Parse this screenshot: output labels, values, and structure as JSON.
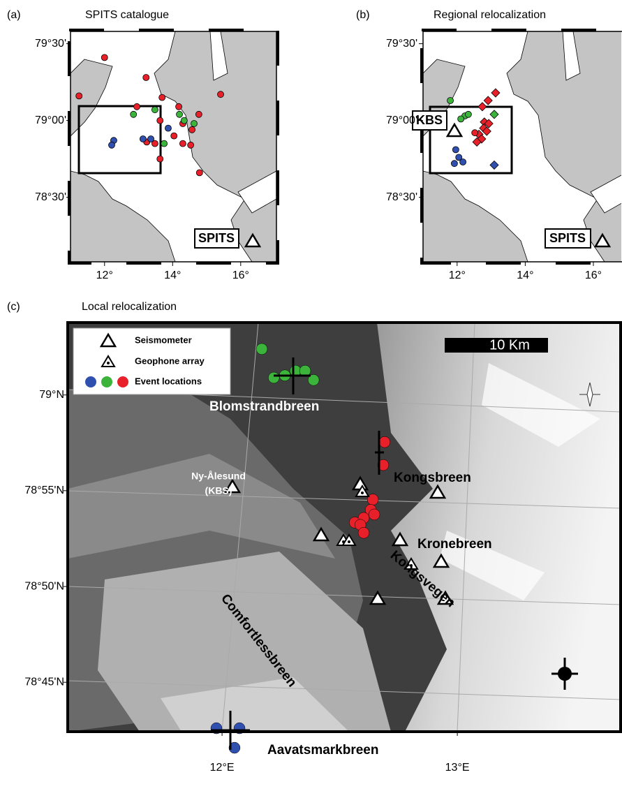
{
  "panels": [
    {
      "label": "(a)",
      "title": "SPITS catalogue",
      "station": "SPITS",
      "xlim": [
        11,
        17.05
      ],
      "ylim": [
        78.08,
        79.58
      ],
      "xticks": [
        {
          "value": 12,
          "label": "12°"
        },
        {
          "value": 14,
          "label": "14°"
        },
        {
          "value": 16,
          "label": "16°"
        }
      ],
      "yticks": [
        {
          "value": 79.5,
          "label": "79°30'"
        },
        {
          "value": 79,
          "label": "79°00'"
        },
        {
          "value": 78.5,
          "label": "78°30'"
        }
      ],
      "events": [
        {
          "color": "#e8202a",
          "shape": "circle",
          "points": [
            [
              12.0,
              79.41
            ],
            [
              13.22,
              79.28
            ],
            [
              13.69,
              79.15
            ],
            [
              15.41,
              79.17
            ],
            [
              11.25,
              79.16
            ],
            [
              12.95,
              79.09
            ],
            [
              14.18,
              79.09
            ],
            [
              14.77,
              79.04
            ],
            [
              13.63,
              79.0
            ],
            [
              14.3,
              78.98
            ],
            [
              14.57,
              78.94
            ],
            [
              14.04,
              78.9
            ],
            [
              14.3,
              78.85
            ],
            [
              14.53,
              78.84
            ],
            [
              13.24,
              78.86
            ],
            [
              13.48,
              78.85
            ],
            [
              14.79,
              78.66
            ],
            [
              13.63,
              78.75
            ]
          ]
        },
        {
          "color": "#3cb43c",
          "shape": "circle",
          "points": [
            [
              12.85,
              79.04
            ],
            [
              13.48,
              79.07
            ],
            [
              14.2,
              79.04
            ],
            [
              14.34,
              79.0
            ],
            [
              14.63,
              78.98
            ],
            [
              13.75,
              78.85
            ]
          ]
        },
        {
          "color": "#3050b0",
          "shape": "circle",
          "points": [
            [
              13.13,
              78.88
            ],
            [
              13.36,
              78.88
            ],
            [
              13.87,
              78.95
            ],
            [
              12.27,
              78.87
            ],
            [
              12.21,
              78.84
            ]
          ]
        }
      ]
    },
    {
      "label": "(b)",
      "title": "Regional relocalization",
      "station": "SPITS",
      "box_label": "KBS",
      "xlim": [
        11,
        16.82
      ],
      "ylim": [
        78.08,
        79.58
      ],
      "xticks": [
        {
          "value": 12,
          "label": "12°"
        },
        {
          "value": 14,
          "label": "14°"
        },
        {
          "value": 16,
          "label": "16°"
        }
      ],
      "yticks": [
        {
          "value": 79.5,
          "label": "79°30'"
        },
        {
          "value": 79,
          "label": "79°00'"
        },
        {
          "value": 78.5,
          "label": "78°30'"
        }
      ],
      "events": [
        {
          "color": "#e8202a",
          "shape": "diamond",
          "points": [
            [
              13.13,
              79.18
            ],
            [
              12.91,
              79.13
            ],
            [
              12.74,
              79.09
            ],
            [
              12.8,
              78.99
            ],
            [
              12.93,
              78.98
            ],
            [
              12.78,
              78.95
            ],
            [
              12.87,
              78.93
            ],
            [
              12.64,
              78.91
            ],
            [
              12.72,
              78.88
            ],
            [
              12.58,
              78.86
            ]
          ]
        },
        {
          "color": "#e8202a",
          "shape": "circle",
          "points": [
            [
              12.52,
              78.92
            ]
          ]
        },
        {
          "color": "#3cb43c",
          "shape": "diamond",
          "points": [
            [
              13.09,
              79.04
            ]
          ]
        },
        {
          "color": "#3cb43c",
          "shape": "circle",
          "points": [
            [
              11.8,
              79.13
            ],
            [
              12.23,
              79.03
            ],
            [
              12.11,
              79.01
            ],
            [
              12.33,
              79.04
            ]
          ]
        },
        {
          "color": "#3050b0",
          "shape": "circle",
          "points": [
            [
              11.96,
              78.81
            ],
            [
              12.05,
              78.76
            ],
            [
              11.92,
              78.72
            ],
            [
              12.17,
              78.73
            ]
          ]
        },
        {
          "color": "#3050b0",
          "shape": "diamond",
          "points": [
            [
              13.09,
              78.71
            ]
          ]
        }
      ]
    },
    {
      "label": "(c)",
      "title": "Local relocalization",
      "xlim": [
        11.344,
        13.694
      ],
      "ylim": [
        78.707,
        79.063
      ],
      "xticks": [
        {
          "value": 12,
          "label": "12°E"
        },
        {
          "value": 13,
          "label": "13°E"
        }
      ],
      "yticks": [
        {
          "value": 79,
          "label": "79°N"
        },
        {
          "value": 78.9167,
          "label": "78°55'N"
        },
        {
          "value": 78.8333,
          "label": "78°50'N"
        },
        {
          "value": 78.75,
          "label": "78°45'N"
        }
      ],
      "legend": [
        "Seismometer",
        "Geophone array",
        "Event locations"
      ],
      "scale_bar": "10 Km",
      "places": [
        "Blomstrandbreen",
        "Ny-Ålesund",
        "(KBS)",
        "Kongsbreen",
        "Kronebreen",
        "Kongsvegen",
        "Comfortlessbreen",
        "Aavatsmarkbreen"
      ],
      "events": [
        {
          "color": "#3cb43c",
          "shape": "circle",
          "points": [
            [
              12.169,
              79.04
            ],
            [
              12.22,
              79.015
            ],
            [
              12.267,
              79.017
            ],
            [
              12.312,
              79.021
            ],
            [
              12.353,
              79.021
            ],
            [
              12.389,
              79.013
            ]
          ]
        },
        {
          "color": "#e8202a",
          "shape": "circle",
          "points": [
            [
              12.691,
              78.959
            ],
            [
              12.685,
              78.939
            ],
            [
              12.641,
              78.909
            ],
            [
              12.632,
              78.9
            ],
            [
              12.647,
              78.896
            ],
            [
              12.602,
              78.893
            ],
            [
              12.564,
              78.889
            ],
            [
              12.588,
              78.887
            ],
            [
              12.602,
              78.88
            ]
          ]
        },
        {
          "color": "#3050b0",
          "shape": "circle",
          "points": [
            [
              11.976,
              78.71
            ],
            [
              12.074,
              78.71
            ],
            [
              12.053,
              78.693
            ]
          ]
        }
      ]
    }
  ]
}
